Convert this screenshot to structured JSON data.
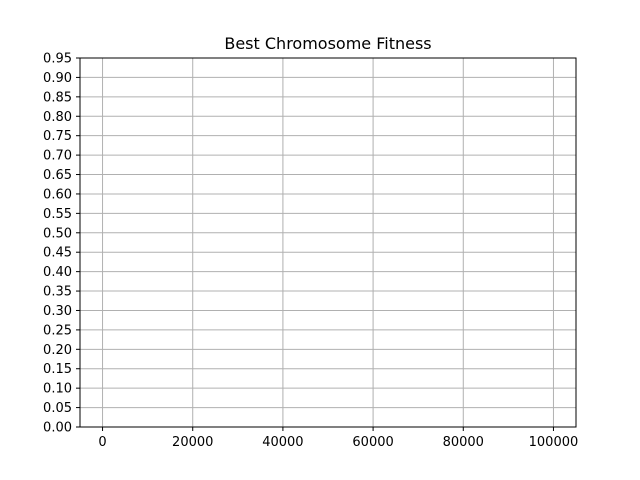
{
  "chart_data": {
    "type": "line",
    "title": "Best Chromosome Fitness",
    "xlabel": "",
    "ylabel": "",
    "x_ticks": [
      "0",
      "20000",
      "40000",
      "60000",
      "80000",
      "100000"
    ],
    "y_ticks": [
      "0.00",
      "0.05",
      "0.10",
      "0.15",
      "0.20",
      "0.25",
      "0.30",
      "0.35",
      "0.40",
      "0.45",
      "0.50",
      "0.55",
      "0.60",
      "0.65",
      "0.70",
      "0.75",
      "0.80",
      "0.85",
      "0.90",
      "0.95"
    ],
    "xlim": [
      -5000,
      105000
    ],
    "ylim": [
      0,
      0.95
    ],
    "grid": true,
    "series": []
  }
}
